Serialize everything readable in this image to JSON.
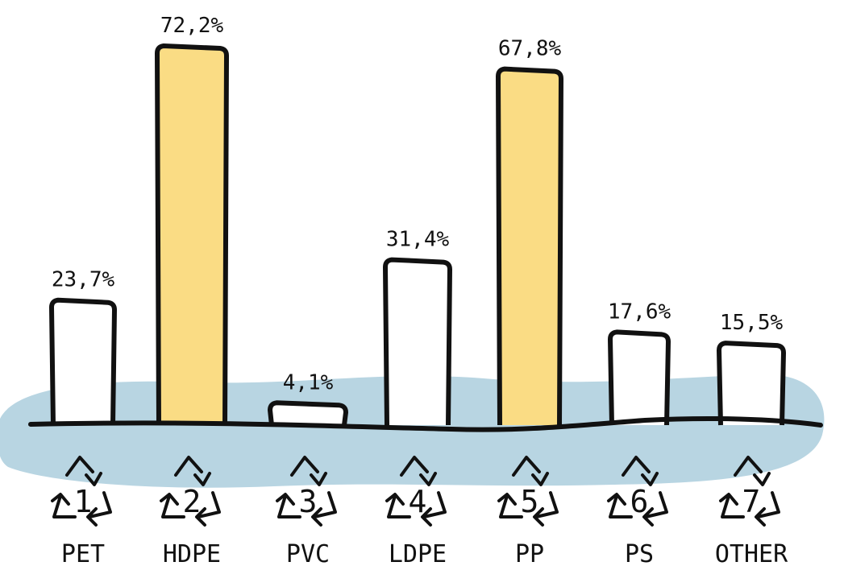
{
  "chart_data": {
    "type": "bar",
    "categories": [
      "PET",
      "HDPE",
      "PVC",
      "LDPE",
      "PP",
      "PS",
      "OTHER"
    ],
    "codes": [
      "1",
      "2",
      "3",
      "4",
      "5",
      "6",
      "7"
    ],
    "values": [
      23.7,
      72.2,
      4.1,
      31.4,
      67.8,
      17.6,
      15.5
    ],
    "value_labels": [
      "23,7%",
      "72,2%",
      "4,1%",
      "31,4%",
      "67,8%",
      "17,6%",
      "15,5%"
    ],
    "highlighted": [
      false,
      true,
      false,
      false,
      true,
      false,
      false
    ],
    "title": "",
    "xlabel": "",
    "ylabel": "",
    "ylim": [
      0,
      72.2
    ],
    "grid": false,
    "colors": {
      "highlight": "#FADC84",
      "normal": "#FFFFFF",
      "outline": "#111111",
      "background_blob": "#B8D5E2"
    },
    "icons": [
      "recycling-symbol-icon"
    ]
  }
}
